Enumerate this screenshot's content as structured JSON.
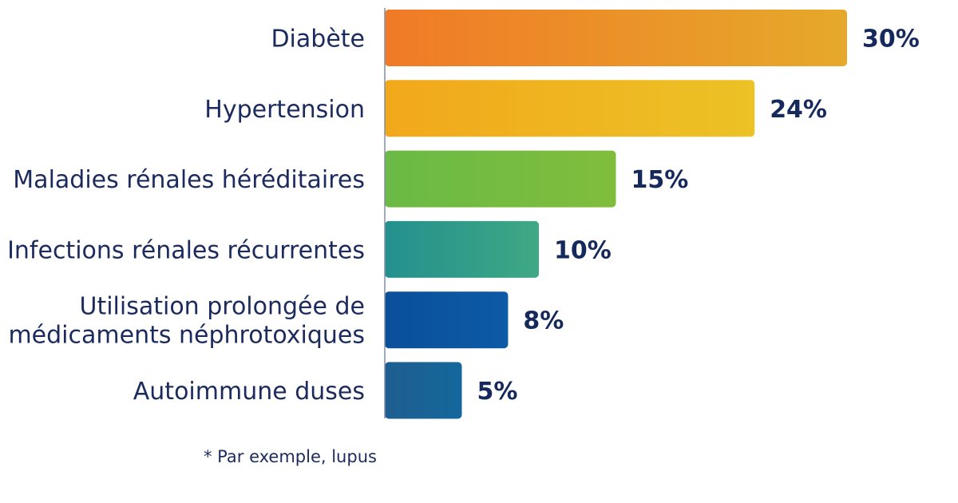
{
  "chart_data": {
    "type": "bar",
    "orientation": "horizontal",
    "categories": [
      [
        "Diabète"
      ],
      [
        "Hypertension"
      ],
      [
        "Maladies rénales héréditaires"
      ],
      [
        "Infections rénales récurrentes"
      ],
      [
        "Utilisation prolongée de",
        "médicaments néphrotoxiques"
      ],
      [
        "Autoimmune duses"
      ]
    ],
    "values": [
      30,
      24,
      15,
      10,
      8,
      5
    ],
    "value_labels": [
      "30%",
      "24%",
      "15%",
      "10%",
      "8%",
      "5%"
    ],
    "unit": "%",
    "xlim": [
      0,
      30
    ],
    "grid": false,
    "legend": "none",
    "bar_colors": [
      [
        "#f07a27",
        "#e6a92a"
      ],
      [
        "#f2a81b",
        "#ecc226"
      ],
      [
        "#6aba45",
        "#80bd3c"
      ],
      [
        "#23908e",
        "#3fa884"
      ],
      [
        "#0a4f9a",
        "#0d5aa6"
      ],
      [
        "#1f5e90",
        "#14679c"
      ]
    ],
    "axis_color": "#7f8fa8",
    "text_color": "#1c2b5e"
  },
  "footnote": "* Par exemple, lupus"
}
